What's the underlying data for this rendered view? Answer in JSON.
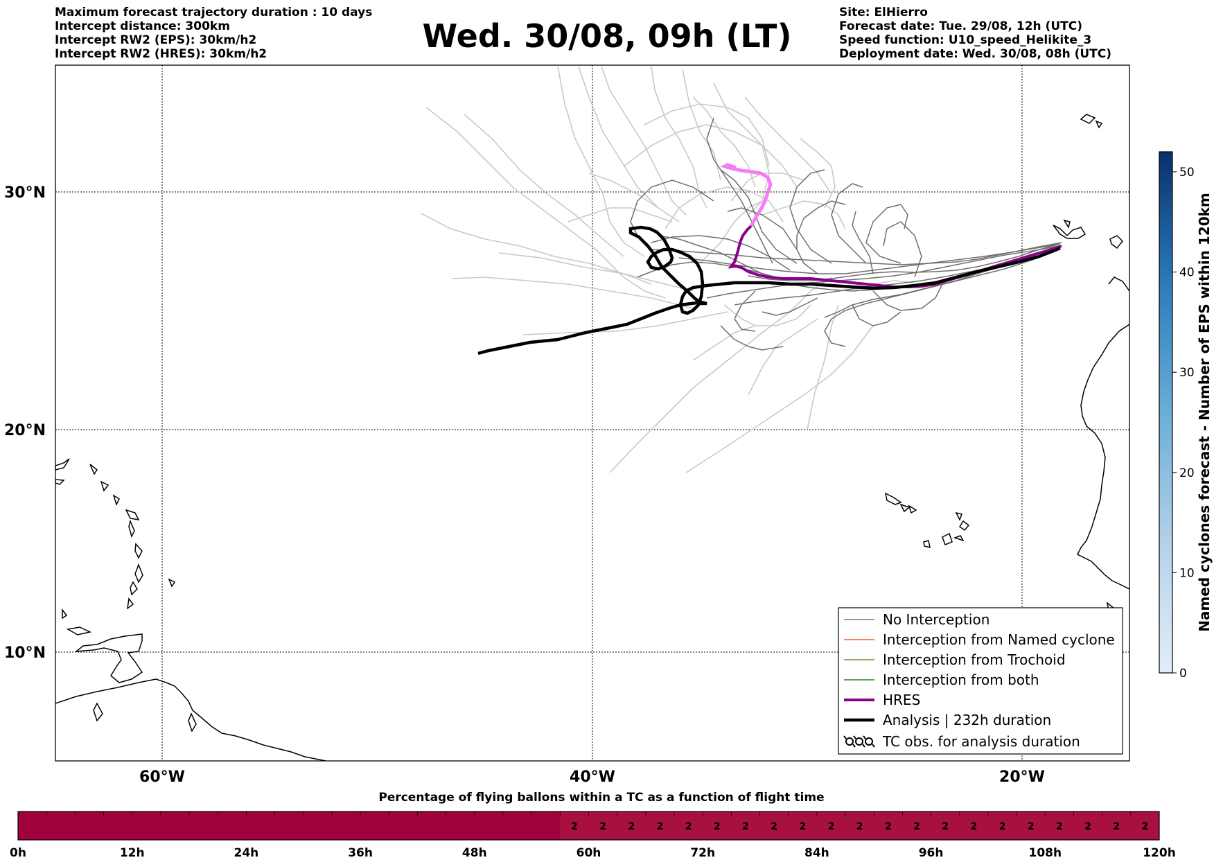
{
  "header": {
    "left_lines": [
      "Maximum forecast trajectory duration : 10 days",
      "Intercept distance: 300km",
      "Intercept RW2 (EPS):  30km/h2",
      "Intercept RW2 (HRES): 30km/h2"
    ],
    "title": "Wed. 30/08, 09h (LT)",
    "right_lines": [
      "Site: ElHierro",
      "Forecast date: Tue. 29/08, 12h (UTC)",
      "Speed function: U10_speed_Helikite_3",
      "Deployment date: Wed. 30/08, 08h (UTC)"
    ]
  },
  "map": {
    "lat_labels": [
      "30°N",
      "20°N",
      "10°N"
    ],
    "lon_labels": [
      "60°W",
      "40°W",
      "20°W"
    ],
    "colors": {
      "no_interception": "#777777",
      "named_cyclone": "#ff5a1f",
      "trochoid": "#808020",
      "both": "#1a8a1a",
      "hres": "#8b008b",
      "hres_light": "#f47df4",
      "analysis": "#000000",
      "eps_light": "#c8c8c8",
      "eps_dark": "#6e6e6e"
    }
  },
  "legend": {
    "items": [
      {
        "label": "No Interception",
        "style": "thin-gray"
      },
      {
        "label": "Interception from Named cyclone",
        "style": "thin-orange"
      },
      {
        "label": "Interception from Trochoid",
        "style": "thin-olive"
      },
      {
        "label": "Interception from both",
        "style": "thin-green"
      },
      {
        "label": "HRES",
        "style": "thick-purple"
      },
      {
        "label": "Analysis | 232h duration",
        "style": "thick-black"
      },
      {
        "label": "TC obs. for analysis duration",
        "style": "tc-symbols"
      }
    ]
  },
  "colorbar": {
    "label": "Named cyclones forecast - Number of EPS within 120km",
    "ticks": [
      "0",
      "10",
      "20",
      "30",
      "40",
      "50"
    ],
    "min": 0,
    "max": 52,
    "color_low": "#e3eef9",
    "color_high": "#08306b"
  },
  "time_bar": {
    "title": "Percentage of flying ballons within a TC as a function of flight time",
    "ticks": [
      "0h",
      "12h",
      "24h",
      "36h",
      "48h",
      "60h",
      "72h",
      "84h",
      "96h",
      "108h",
      "120h"
    ],
    "color_zero": "#a0003c",
    "color_value": "#a8103f",
    "cell_value": "2",
    "value_start_index": 19,
    "cells": 40
  }
}
